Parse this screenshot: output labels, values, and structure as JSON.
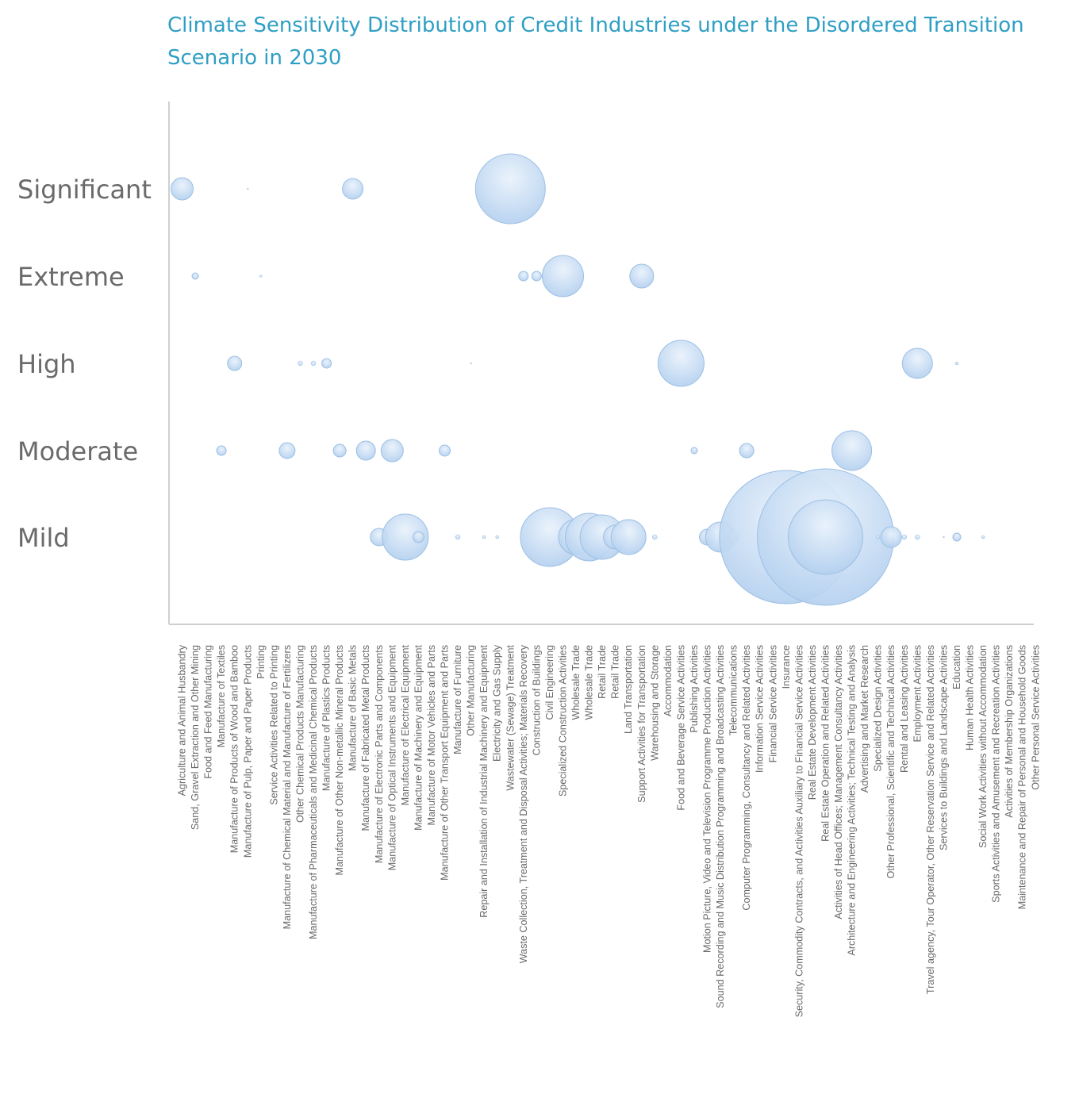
{
  "colors": {
    "title": "#2e9fc4",
    "axis": "#cfcfcf",
    "label": "#6a6a6a",
    "bubble_fill_light": "#e9f2fb",
    "bubble_fill_dark": "#b4d0ef",
    "bubble_stroke": "#9cbfe4"
  },
  "chart_data": {
    "type": "bubble",
    "title": "Climate Sensitivity Distribution of Credit Industries under the Disordered Transition Scenario in 2030",
    "y_levels": [
      "Significant",
      "Extreme",
      "High",
      "Moderate",
      "Mild"
    ],
    "categories": [
      "Agriculture and Animal Husbandry",
      "Sand, Gravel Extraction and Other Mining",
      "Food and Feed Manufacturing",
      "Manufacture of Textiles",
      "Manufacture of Products of Wood and Bamboo",
      "Manufacture of Pulp, Paper and Paper Products",
      "Printing",
      "Service Activities Related to Printing",
      "Manufacture of Chemical Material and Manufacture of Fertilizers",
      "Other Chemical Products Manufacturing",
      "Manufacture of Pharmaceuticals and Medicinal Chemical Products",
      "Manufacture of Plastics Products",
      "Manufacture of Other Non-metallic Mineral Products",
      "Manufacture of Basic Metals",
      "Manufacture of Fabricated Metal Products",
      "Manufacture of Electronic Parts and Components",
      "Manufacture of Optical Instruments and Equipment",
      "Manufacture of Electrical Equipment",
      "Manufacture of Machinery and Equipment",
      "Manufacture of Motor Vehicles and Parts",
      "Manufacture of Other Transport Equipment and Parts",
      "Manufacture of Furniture",
      "Other Manufacturing",
      "Repair and Installation of Industrial Machinery and Equipment",
      "Electricity and Gas Supply",
      "Wastewater (Sewage) Treatment",
      "Waste Collection, Treatment and Disposal Activities; Materials Recovery",
      "Construction of Buildings",
      "Civil Engineering",
      "Specialized Construction Activities",
      "Wholesale Trade",
      "Wholesale Trade",
      "Retail Trade",
      "Retail Trade",
      "Land Transportation",
      "Support Activities for Transportation",
      "Warehousing and Storage",
      "Accommodation",
      "Food and Beverage Service Activities",
      "Publishing Activities",
      "Motion Picture, Video and Television Programme Production Activities",
      "Sound Recording and Music Distribution Programming and Broadcasting Activities",
      "Telecommunications",
      "Computer Programming, Consultancy and Related Activities",
      "Information Service Activities",
      "Financial Service Activities",
      "Insurance",
      "Security, Commodity Contracts, and Activities Auxiliary to Financial Service Activities",
      "Real Estate Development Activities",
      "Real Estate Operation and Related Activities",
      "Activities of Head Offices; Management Consultancy Activities",
      "Architecture and Engineering Activities; Technical Testing and Analysis",
      "Advertising and Market Research",
      "Specialized Design Activities",
      "Other Professional, Scientific and Technical Activities",
      "Rental and Leasing Activities",
      "Employment Activities",
      "Travel agency, Tour Operator, Other Reservation Service and Related Activities",
      "Services to Buildings and Landscape Activities",
      "Education",
      "Human Health Activities",
      "Social Work Activities without Accommodation",
      "Sports Activities and Amusement and Recreation Activities",
      "Activities of Membership Organizations",
      "Maintenance and Repair of Personal and Household Goods",
      "Other Personal Service Activities"
    ],
    "points": [
      {
        "category": 0,
        "level": "Significant",
        "size": 14
      },
      {
        "category": 5,
        "level": "Significant",
        "size": 1
      },
      {
        "category": 13,
        "level": "Significant",
        "size": 13
      },
      {
        "category": 25,
        "level": "Significant",
        "size": 44
      },
      {
        "category": 1,
        "level": "Extreme",
        "size": 4
      },
      {
        "category": 6,
        "level": "Extreme",
        "size": 1.5
      },
      {
        "category": 26,
        "level": "Extreme",
        "size": 6
      },
      {
        "category": 27,
        "level": "Extreme",
        "size": 6
      },
      {
        "category": 29,
        "level": "Extreme",
        "size": 26
      },
      {
        "category": 35,
        "level": "Extreme",
        "size": 15
      },
      {
        "category": 4,
        "level": "High",
        "size": 9
      },
      {
        "category": 9,
        "level": "High",
        "size": 3
      },
      {
        "category": 10,
        "level": "High",
        "size": 3
      },
      {
        "category": 11,
        "level": "High",
        "size": 6
      },
      {
        "category": 22,
        "level": "High",
        "size": 1
      },
      {
        "category": 38,
        "level": "High",
        "size": 29
      },
      {
        "category": 56,
        "level": "High",
        "size": 19
      },
      {
        "category": 59,
        "level": "High",
        "size": 2
      },
      {
        "category": 3,
        "level": "Moderate",
        "size": 6
      },
      {
        "category": 8,
        "level": "Moderate",
        "size": 10
      },
      {
        "category": 12,
        "level": "Moderate",
        "size": 8
      },
      {
        "category": 14,
        "level": "Moderate",
        "size": 12
      },
      {
        "category": 16,
        "level": "Moderate",
        "size": 14
      },
      {
        "category": 20,
        "level": "Moderate",
        "size": 7
      },
      {
        "category": 39,
        "level": "Moderate",
        "size": 4
      },
      {
        "category": 43,
        "level": "Moderate",
        "size": 9
      },
      {
        "category": 51,
        "level": "Moderate",
        "size": 25
      },
      {
        "category": 15,
        "level": "Mild",
        "size": 11
      },
      {
        "category": 17,
        "level": "Mild",
        "size": 29
      },
      {
        "category": 18,
        "level": "Mild",
        "size": 7
      },
      {
        "category": 21,
        "level": "Mild",
        "size": 3
      },
      {
        "category": 23,
        "level": "Mild",
        "size": 2
      },
      {
        "category": 24,
        "level": "Mild",
        "size": 2
      },
      {
        "category": 28,
        "level": "Mild",
        "size": 37
      },
      {
        "category": 30,
        "level": "Mild",
        "size": 22
      },
      {
        "category": 31,
        "level": "Mild",
        "size": 30
      },
      {
        "category": 32,
        "level": "Mild",
        "size": 28
      },
      {
        "category": 33,
        "level": "Mild",
        "size": 15
      },
      {
        "category": 34,
        "level": "Mild",
        "size": 22
      },
      {
        "category": 36,
        "level": "Mild",
        "size": 3
      },
      {
        "category": 40,
        "level": "Mild",
        "size": 10
      },
      {
        "category": 41,
        "level": "Mild",
        "size": 19
      },
      {
        "category": 42,
        "level": "Mild",
        "size": 7
      },
      {
        "category": 46,
        "level": "Mild",
        "size": 84
      },
      {
        "category": 49,
        "level": "Mild",
        "size": 86
      },
      {
        "category": 49,
        "level": "Mild",
        "size": 47
      },
      {
        "category": 53,
        "level": "Mild",
        "size": 2
      },
      {
        "category": 54,
        "level": "Mild",
        "size": 13
      },
      {
        "category": 55,
        "level": "Mild",
        "size": 3
      },
      {
        "category": 56,
        "level": "Mild",
        "size": 3
      },
      {
        "category": 58,
        "level": "Mild",
        "size": 1
      },
      {
        "category": 59,
        "level": "Mild",
        "size": 5
      },
      {
        "category": 61,
        "level": "Mild",
        "size": 2
      }
    ]
  }
}
